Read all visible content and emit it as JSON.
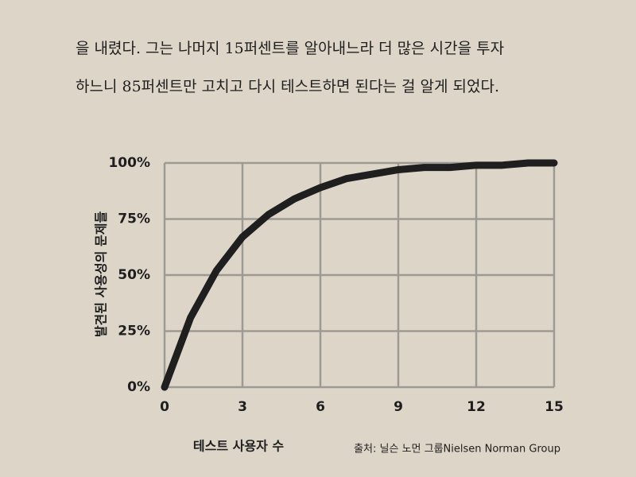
{
  "page": {
    "lines": [
      "을 내렸다. 그는 나머지 15퍼센트를 알아내느라 더 많은 시간을 투자",
      "하느니 85퍼센트만 고치고 다시 테스트하면 된다는 걸 알게 되었다."
    ]
  },
  "chart_data": {
    "type": "line",
    "x_label": "테스트 사용자 수",
    "y_label": "발견된 사용성의 문제들",
    "source": "출처: 닐슨 노먼 그룹Nielsen Norman Group",
    "x": [
      0,
      1,
      2,
      3,
      4,
      5,
      6,
      7,
      8,
      9,
      10,
      11,
      12,
      13,
      14,
      15
    ],
    "series": [
      {
        "name": "발견된 사용성의 문제들",
        "color": "#1f1f1f",
        "values": [
          0,
          31,
          52,
          67,
          77,
          84,
          89,
          93,
          95,
          97,
          98,
          98,
          99,
          99,
          100,
          100
        ]
      }
    ],
    "xlim": [
      0,
      15
    ],
    "ylim": [
      0,
      100
    ],
    "xticks": [
      0,
      3,
      6,
      9,
      12,
      15
    ],
    "yticks": [
      {
        "value": 0,
        "label": "0%"
      },
      {
        "value": 25,
        "label": "25%"
      },
      {
        "value": 50,
        "label": "50%"
      },
      {
        "value": 75,
        "label": "75%"
      },
      {
        "value": 100,
        "label": "100%"
      }
    ],
    "grid": true
  }
}
